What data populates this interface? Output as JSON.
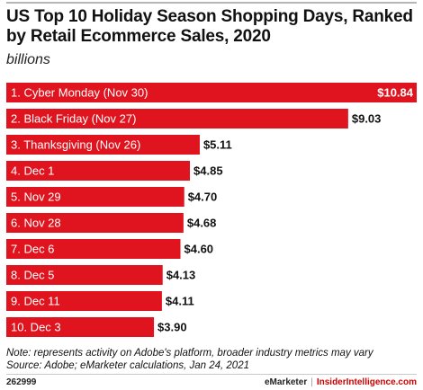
{
  "chart_data": {
    "type": "bar",
    "orientation": "horizontal",
    "title": "US Top 10 Holiday Season Shopping Days, Ranked by Retail Ecommerce Sales, 2020",
    "subtitle": "billions",
    "categories": [
      "1. Cyber Monday (Nov 30)",
      "2. Black Friday (Nov 27)",
      "3. Thanksgiving (Nov 26)",
      "4. Dec 1",
      "5. Nov 29",
      "6. Nov 28",
      "7. Dec 6",
      "8. Dec 5",
      "9. Dec 11",
      "10. Dec 3"
    ],
    "values": [
      10.84,
      9.03,
      5.11,
      4.85,
      4.7,
      4.68,
      4.6,
      4.13,
      4.11,
      3.9
    ],
    "value_labels": [
      "$10.84",
      "$9.03",
      "$5.11",
      "$4.85",
      "$4.70",
      "$4.68",
      "$4.60",
      "$4.13",
      "$4.11",
      "$3.90"
    ],
    "xlim": [
      0,
      10.84
    ],
    "grid": false,
    "legend": "none",
    "bar_color": "#e0141e",
    "category_label_color": "#ffffff",
    "value_label_color": "#111111"
  },
  "note": "Note: represents activity on Adobe's platform, broader industry metrics may vary",
  "source": "Source: Adobe; eMarketer calculations, Jan 24, 2021",
  "chart_id": "262999",
  "brand": {
    "a": "eMarketer",
    "separator": "|",
    "b": "InsiderIntelligence.com"
  }
}
